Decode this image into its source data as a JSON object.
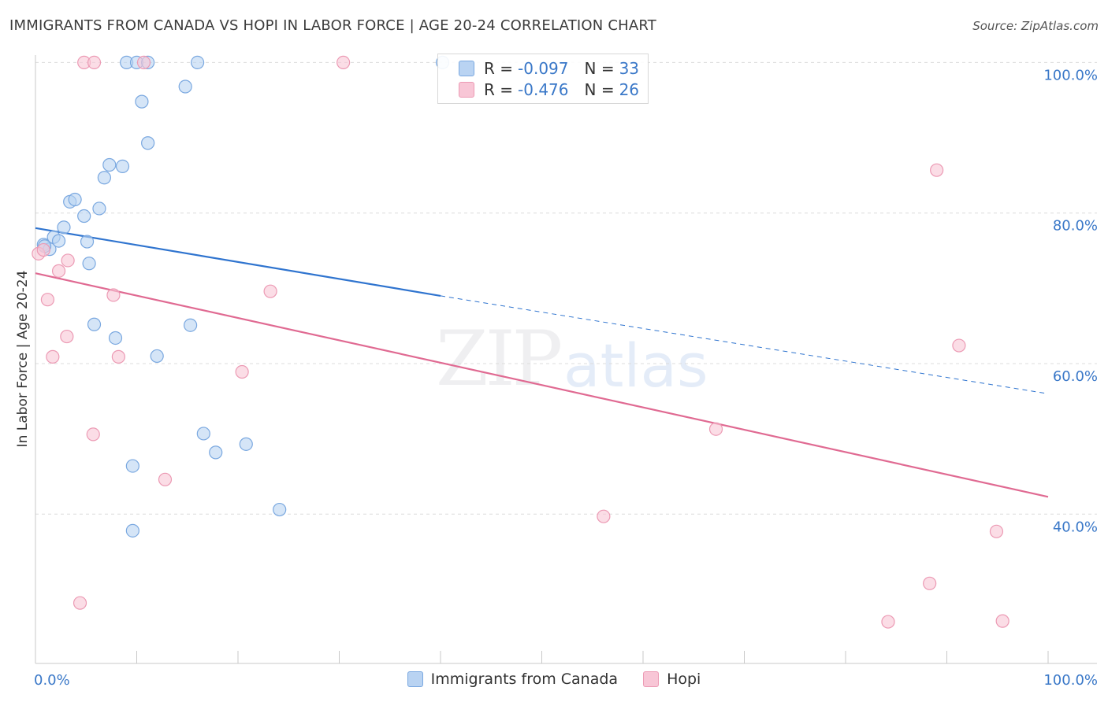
{
  "title": "IMMIGRANTS FROM CANADA VS HOPI IN LABOR FORCE | AGE 20-24 CORRELATION CHART",
  "source": "Source: ZipAtlas.com",
  "watermark": {
    "zip": "ZIP",
    "atlas": "atlas"
  },
  "legend_top": [
    {
      "r_label": "R =",
      "r_value": "-0.097",
      "n_label": "N =",
      "n_value": "33"
    },
    {
      "r_label": "R =",
      "r_value": "-0.476",
      "n_label": "N =",
      "n_value": "26"
    }
  ],
  "colors": {
    "canada_fill": "#b9d3f2",
    "canada_stroke": "#7aa8e0",
    "canada_line": "#2f74cf",
    "hopi_fill": "#f8c6d6",
    "hopi_stroke": "#ec9ab4",
    "hopi_line": "#e06a92",
    "tick_label": "#3a78c8",
    "grid": "#dcdcdc"
  },
  "chart_data": {
    "type": "scatter",
    "title": "IMMIGRANTS FROM CANADA VS HOPI IN LABOR FORCE | AGE 20-24 CORRELATION CHART",
    "xlabel": "",
    "ylabel": "In Labor Force | Age 20-24",
    "xlim": [
      0,
      100
    ],
    "ylim": [
      20,
      101
    ],
    "x_tick_labels": [
      "0.0%",
      "100.0%"
    ],
    "y_ticks": [
      40,
      60,
      80,
      100
    ],
    "y_tick_labels": [
      "40.0%",
      "60.0%",
      "80.0%",
      "100.0%"
    ],
    "grid": true,
    "legend_position": "bottom",
    "series": [
      {
        "name": "Immigrants from Canada",
        "r": -0.097,
        "n": 33,
        "trend": {
          "x0": 0,
          "y0": 78.0,
          "x1": 40,
          "y1": 69.0,
          "dashed_to_x": 100,
          "dashed_to_y": 56.0
        },
        "points": [
          [
            0.8,
            75.8
          ],
          [
            1.4,
            75.2
          ],
          [
            1.8,
            76.8
          ],
          [
            2.3,
            76.3
          ],
          [
            2.8,
            78.1
          ],
          [
            3.4,
            81.5
          ],
          [
            3.9,
            81.8
          ],
          [
            4.8,
            79.6
          ],
          [
            5.3,
            73.3
          ],
          [
            6.3,
            80.6
          ],
          [
            5.1,
            76.2
          ],
          [
            6.8,
            84.7
          ],
          [
            7.3,
            86.4
          ],
          [
            8.6,
            86.2
          ],
          [
            9.0,
            100.0
          ],
          [
            10.0,
            100.0
          ],
          [
            10.5,
            94.8
          ],
          [
            11.1,
            89.3
          ],
          [
            11.1,
            100.0
          ],
          [
            14.8,
            96.8
          ],
          [
            16.0,
            100.0
          ],
          [
            5.8,
            65.2
          ],
          [
            7.9,
            63.4
          ],
          [
            12.0,
            61.0
          ],
          [
            15.3,
            65.1
          ],
          [
            16.6,
            50.7
          ],
          [
            17.8,
            48.2
          ],
          [
            20.8,
            49.3
          ],
          [
            9.6,
            46.4
          ],
          [
            24.1,
            40.6
          ],
          [
            9.6,
            37.8
          ],
          [
            40.2,
            100.0
          ],
          [
            0.9,
            75.6
          ]
        ]
      },
      {
        "name": "Hopi",
        "r": -0.476,
        "n": 26,
        "trend": {
          "x0": 0,
          "y0": 72.0,
          "x1": 100,
          "y1": 42.3
        },
        "points": [
          [
            0.3,
            74.6
          ],
          [
            0.8,
            75.1
          ],
          [
            1.2,
            68.5
          ],
          [
            1.7,
            60.9
          ],
          [
            2.3,
            72.3
          ],
          [
            3.1,
            63.6
          ],
          [
            3.2,
            73.7
          ],
          [
            4.4,
            28.2
          ],
          [
            4.8,
            100.0
          ],
          [
            5.8,
            100.0
          ],
          [
            5.7,
            50.6
          ],
          [
            7.7,
            69.1
          ],
          [
            8.2,
            60.9
          ],
          [
            10.7,
            100.0
          ],
          [
            12.8,
            44.6
          ],
          [
            20.4,
            58.9
          ],
          [
            23.2,
            69.6
          ],
          [
            30.4,
            100.0
          ],
          [
            67.2,
            51.3
          ],
          [
            56.1,
            39.7
          ],
          [
            89.0,
            85.7
          ],
          [
            91.2,
            62.4
          ],
          [
            88.3,
            30.8
          ],
          [
            94.9,
            37.7
          ],
          [
            84.2,
            25.7
          ],
          [
            95.5,
            25.8
          ]
        ]
      }
    ]
  }
}
